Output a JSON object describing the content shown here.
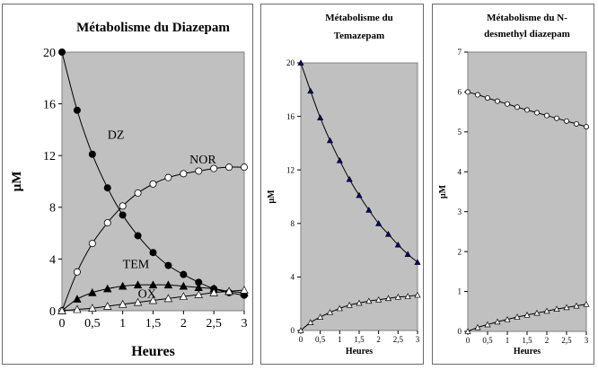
{
  "chart_data": [
    {
      "type": "line",
      "title": "Métabolisme du Diazepam",
      "xlabel": "Heures",
      "ylabel": "µM",
      "xlim": [
        0,
        3
      ],
      "ylim": [
        0,
        20
      ],
      "xticks": [
        0,
        0.5,
        1,
        1.5,
        2,
        2.5,
        3
      ],
      "xtick_labels": [
        "0",
        "0,5",
        "1",
        "1,5",
        "2",
        "2,5",
        "3"
      ],
      "yticks": [
        0,
        4,
        8,
        12,
        16,
        20
      ],
      "ytick_labels": [
        "0",
        "4",
        "8",
        "12",
        "16",
        "20"
      ],
      "plot_background": "#c0c0c0",
      "grid": false,
      "legend": "none",
      "annotations": [
        {
          "text": "DZ",
          "x": 0.75,
          "y": 13.3
        },
        {
          "text": "NOR",
          "x": 2.1,
          "y": 11.4
        },
        {
          "text": "TEM",
          "x": 1.0,
          "y": 3.3
        },
        {
          "text": "OX",
          "x": 1.25,
          "y": 1.0
        }
      ],
      "series": [
        {
          "marker": "filled-circle",
          "color": "#000000",
          "x": [
            0,
            0.25,
            0.5,
            0.75,
            1,
            1.25,
            1.5,
            1.75,
            2,
            2.25,
            2.5,
            2.75,
            3
          ],
          "y": [
            20,
            15.5,
            12.1,
            9.5,
            7.4,
            5.8,
            4.5,
            3.5,
            2.8,
            2.2,
            1.7,
            1.4,
            1.2
          ]
        },
        {
          "marker": "open-circle",
          "color": "#000000",
          "x": [
            0,
            0.25,
            0.5,
            0.75,
            1,
            1.25,
            1.5,
            1.75,
            2,
            2.25,
            2.5,
            2.75,
            3
          ],
          "y": [
            0,
            3.0,
            5.2,
            6.8,
            8.1,
            9.1,
            9.8,
            10.3,
            10.6,
            10.8,
            11.0,
            11.1,
            11.1
          ]
        },
        {
          "marker": "filled-triangle",
          "color": "#000000",
          "x": [
            0,
            0.25,
            0.5,
            0.75,
            1,
            1.25,
            1.5,
            1.75,
            2,
            2.25,
            2.5,
            2.75,
            3
          ],
          "y": [
            0,
            0.9,
            1.4,
            1.7,
            1.9,
            2.0,
            2.0,
            2.0,
            1.9,
            1.8,
            1.7,
            1.5,
            1.4
          ]
        },
        {
          "marker": "open-triangle",
          "color": "#000000",
          "x": [
            0,
            0.25,
            0.5,
            0.75,
            1,
            1.25,
            1.5,
            1.75,
            2,
            2.25,
            2.5,
            2.75,
            3
          ],
          "y": [
            0,
            0.1,
            0.2,
            0.35,
            0.5,
            0.65,
            0.8,
            0.95,
            1.1,
            1.25,
            1.4,
            1.5,
            1.6
          ]
        }
      ]
    },
    {
      "type": "line",
      "title": "Métabolisme du Temazepam",
      "title_lines": [
        "Métabolisme du",
        "Temazepam"
      ],
      "xlabel": "Heures",
      "ylabel": "µM",
      "xlim": [
        0,
        3
      ],
      "ylim": [
        0,
        20
      ],
      "xticks": [
        0,
        0.5,
        1,
        1.5,
        2,
        2.5,
        3
      ],
      "xtick_labels": [
        "0",
        "0,5",
        "1",
        "1,5",
        "2",
        "2,5",
        "3"
      ],
      "yticks": [
        0,
        4,
        8,
        12,
        16,
        20
      ],
      "ytick_labels": [
        "0",
        "4",
        "8",
        "12",
        "16",
        "20"
      ],
      "plot_background": "#c0c0c0",
      "grid": false,
      "legend": "none",
      "series": [
        {
          "marker": "filled-triangle",
          "color": "#00008b",
          "x": [
            0,
            0.25,
            0.5,
            0.75,
            1,
            1.25,
            1.5,
            1.75,
            2,
            2.25,
            2.5,
            2.75,
            3
          ],
          "y": [
            20,
            17.9,
            15.9,
            14.2,
            12.7,
            11.3,
            10.1,
            9.0,
            8.0,
            7.2,
            6.4,
            5.7,
            5.1
          ]
        },
        {
          "marker": "open-triangle",
          "color": "#000000",
          "x": [
            0,
            0.25,
            0.5,
            0.75,
            1,
            1.25,
            1.5,
            1.75,
            2,
            2.25,
            2.5,
            2.75,
            3
          ],
          "y": [
            0,
            0.6,
            1.0,
            1.35,
            1.65,
            1.9,
            2.05,
            2.2,
            2.3,
            2.4,
            2.5,
            2.55,
            2.65
          ]
        }
      ]
    },
    {
      "type": "line",
      "title": "Métabolisme du N-desmethyl diazepam",
      "title_lines": [
        "Métabolisme du N-",
        "desmethyl diazepam"
      ],
      "xlabel": "Heures",
      "ylabel": "µM",
      "xlim": [
        0,
        3
      ],
      "ylim": [
        0,
        7
      ],
      "xticks": [
        0,
        0.5,
        1,
        1.5,
        2,
        2.5,
        3
      ],
      "xtick_labels": [
        "0",
        "0,5",
        "1",
        "1,5",
        "2",
        "2,5",
        "3"
      ],
      "yticks": [
        0,
        1,
        2,
        3,
        4,
        5,
        6,
        7
      ],
      "ytick_labels": [
        "0",
        "1",
        "2",
        "3",
        "4",
        "5",
        "6",
        "7"
      ],
      "plot_background": "#c0c0c0",
      "grid": false,
      "legend": "none",
      "series": [
        {
          "marker": "open-circle",
          "color": "#000000",
          "x": [
            0,
            0.25,
            0.5,
            0.75,
            1,
            1.25,
            1.5,
            1.75,
            2,
            2.25,
            2.5,
            2.75,
            3
          ],
          "y": [
            6.0,
            5.93,
            5.85,
            5.77,
            5.7,
            5.62,
            5.55,
            5.48,
            5.41,
            5.34,
            5.27,
            5.2,
            5.13
          ]
        },
        {
          "marker": "open-triangle",
          "color": "#000000",
          "x": [
            0,
            0.25,
            0.5,
            0.75,
            1,
            1.25,
            1.5,
            1.75,
            2,
            2.25,
            2.5,
            2.75,
            3
          ],
          "y": [
            0,
            0.1,
            0.17,
            0.24,
            0.3,
            0.36,
            0.41,
            0.46,
            0.51,
            0.56,
            0.6,
            0.64,
            0.68
          ]
        }
      ]
    }
  ]
}
